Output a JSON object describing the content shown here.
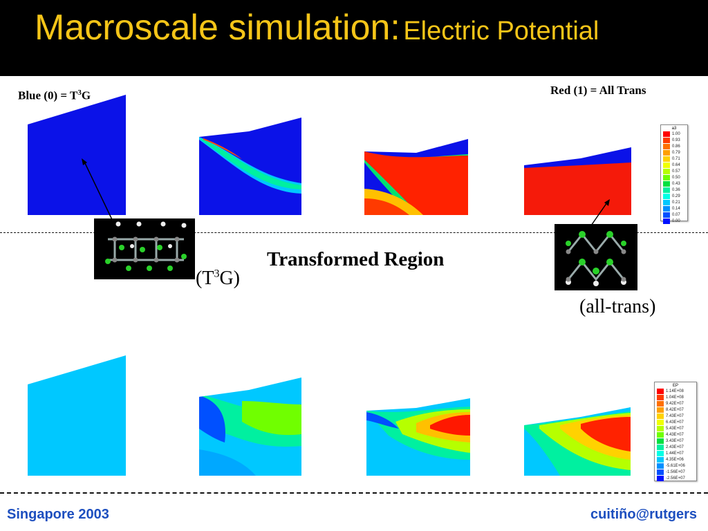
{
  "title": {
    "main": "Macroscale simulation:",
    "sub": "Electric Potential"
  },
  "labels": {
    "blue": "Blue (0) = T",
    "blue_sup": "3",
    "blue_tail": "G",
    "red": "Red (1) = All Trans",
    "transformed": "Transformed Region",
    "t3g_open": "(T",
    "t3g_sup": "3",
    "t3g_close": "G)",
    "alltrans": "(all-trans)"
  },
  "legend_top": {
    "title": "a3",
    "values": [
      "1.00",
      "0.93",
      "0.86",
      "0.79",
      "0.71",
      "0.64",
      "0.57",
      "0.50",
      "0.43",
      "0.36",
      "0.29",
      "0.21",
      "0.14",
      "0.07",
      "0.00"
    ],
    "colors": [
      "#ff0000",
      "#ff3a00",
      "#ff7000",
      "#ffa000",
      "#ffd200",
      "#f0ff00",
      "#b6ff00",
      "#70ff00",
      "#00e040",
      "#00f0a0",
      "#00ffe6",
      "#00c8ff",
      "#0090ff",
      "#0050ff",
      "#0010ff"
    ]
  },
  "legend_bottom": {
    "title": "EP",
    "values": [
      "1.14E+08",
      "1.04E+08",
      "9.42E+07",
      "8.42E+07",
      "7.43E+07",
      "6.43E+07",
      "5.43E+07",
      "4.43E+07",
      "3.43E+07",
      "2.43E+07",
      "1.44E+07",
      "4.35E+06",
      "-5.61E+06",
      "-1.56E+07",
      "-2.56E+07"
    ],
    "colors": [
      "#ff0000",
      "#ff3a00",
      "#ff7000",
      "#ffa000",
      "#ffd200",
      "#f0ff00",
      "#b6ff00",
      "#70ff00",
      "#00e040",
      "#00f0a0",
      "#00ffe6",
      "#00c8ff",
      "#0090ff",
      "#0050ff",
      "#0010ff"
    ]
  },
  "footer": {
    "left": "Singapore 2003",
    "right": "cuitiño@rutgers"
  }
}
